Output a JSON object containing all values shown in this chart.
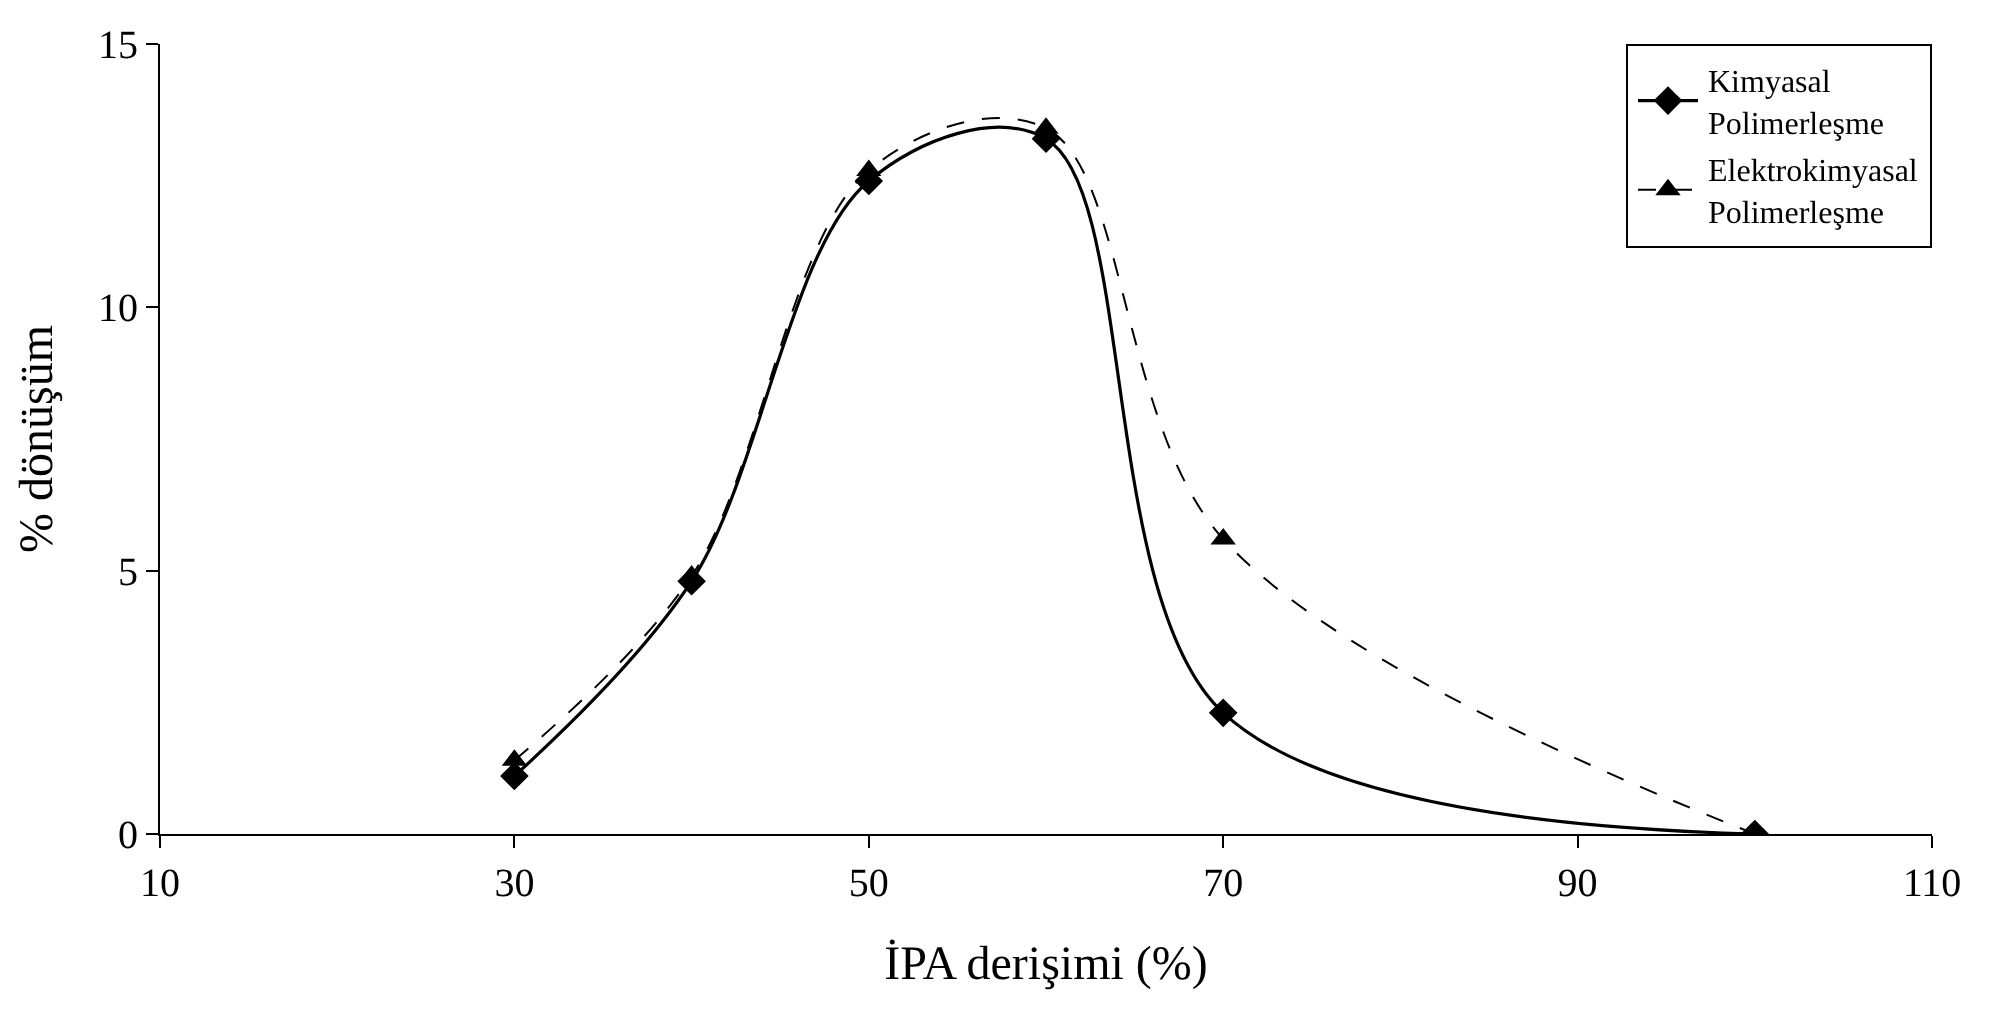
{
  "chart_data": {
    "type": "line",
    "xlabel": "İPA derişimi (%)",
    "ylabel": "% dönüşüm",
    "x": [
      30,
      40,
      50,
      60,
      70,
      100
    ],
    "xlim": [
      10,
      110
    ],
    "xticks": [
      10,
      30,
      50,
      70,
      90,
      110
    ],
    "ylim": [
      0,
      15
    ],
    "yticks": [
      0,
      5,
      10,
      15
    ],
    "grid": false,
    "legend": "top right",
    "series": [
      {
        "name": "Kimyasal Polimerleşme",
        "color": "#000000",
        "marker": "diamond",
        "line_style": "solid",
        "values": [
          1.1,
          4.8,
          12.4,
          13.2,
          2.3,
          0
        ]
      },
      {
        "name": "Elektrokimyasal Polimerleşme",
        "color": "#000000",
        "marker": "triangle",
        "line_style": "dashed",
        "values": [
          1.4,
          4.9,
          12.6,
          13.4,
          5.6,
          0
        ]
      }
    ]
  }
}
